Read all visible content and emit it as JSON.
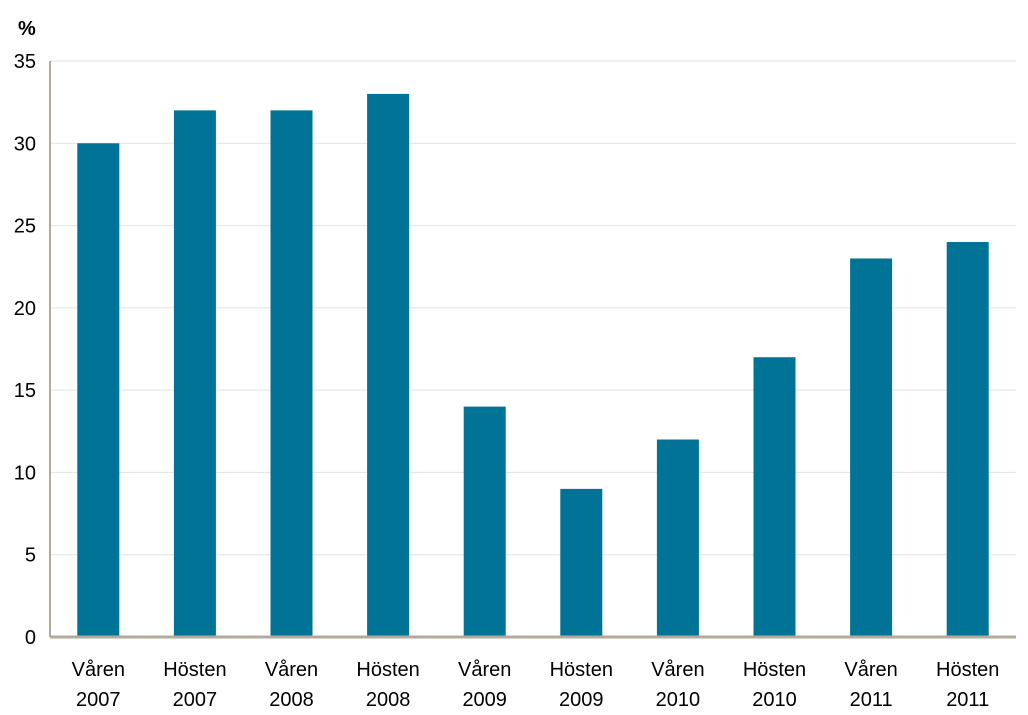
{
  "chart_data": {
    "type": "bar",
    "unit_label": "%",
    "categories": [
      [
        "Våren",
        "2007"
      ],
      [
        "Hösten",
        "2007"
      ],
      [
        "Våren",
        "2008"
      ],
      [
        "Hösten",
        "2008"
      ],
      [
        "Våren",
        "2009"
      ],
      [
        "Hösten",
        "2009"
      ],
      [
        "Våren",
        "2010"
      ],
      [
        "Hösten",
        "2010"
      ],
      [
        "Våren",
        "2011"
      ],
      [
        "Hösten",
        "2011"
      ]
    ],
    "values": [
      30,
      32,
      32,
      33,
      14,
      9,
      12,
      17,
      23,
      24
    ],
    "ylim": [
      0,
      35
    ],
    "yticks": [
      "0",
      "5",
      "10",
      "15",
      "20",
      "25",
      "30",
      "35"
    ],
    "grid": true,
    "colors": {
      "bar": "#007396",
      "axis": "#b3aa9e",
      "grid": "#e2e2e2"
    }
  }
}
